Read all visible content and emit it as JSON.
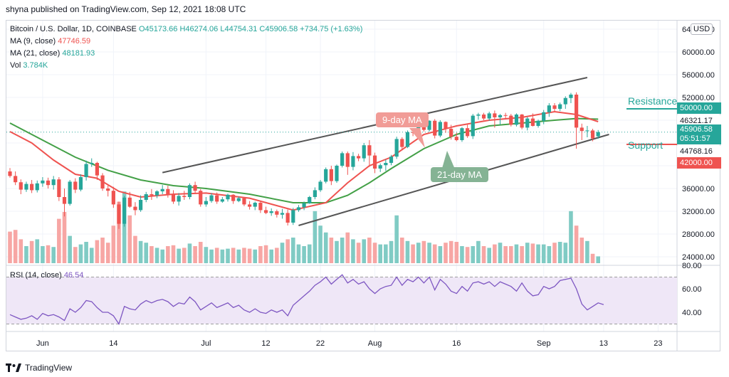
{
  "header": "shyna published on TradingView.com, Sep 12, 2021 18:08 UTC",
  "legend": {
    "symbol": "Bitcoin / U.S. Dollar, 1D, COINBASE",
    "open": "O45173.66",
    "high": "H46274.06",
    "low": "L44754.31",
    "close": "C45906.58",
    "change": "+734.75 (+1.63%)",
    "ma9_label": "MA (9, close)",
    "ma9_value": "47746.59",
    "ma21_label": "MA (21, close)",
    "ma21_value": "48181.93",
    "vol_label": "Vol",
    "vol_value": "3.784K"
  },
  "rsi_legend": {
    "label": "RSI (14, close)",
    "value": "46.54"
  },
  "currency_button": "USD",
  "price_tags": {
    "resistance": "50000.00",
    "ma": "46321.17",
    "last": "45906.58",
    "countdown": "05:51:57",
    "support": "44768.16",
    "support_line": "42000.00"
  },
  "annotations": {
    "nine_day": "9-day MA",
    "twenty_one_day": "21-day MA",
    "resistance": "Resistance",
    "support": "Support"
  },
  "footer": "TradingView",
  "colors": {
    "up": "#26a69a",
    "down": "#ef5350",
    "ma9": "#ef5350",
    "ma21": "#43a047",
    "vol_up": "#80cbc4",
    "vol_down": "#f7a6a4",
    "rsi": "#7e57c2",
    "rsi_band": "#efe7f7",
    "channel": "#555555"
  },
  "chart_data": {
    "type": "candlestick",
    "price_ticks": [
      24000,
      28000,
      32000,
      36000,
      40000,
      44000,
      48000,
      52000,
      56000,
      60000,
      64000
    ],
    "price_tick_labels": [
      "24000.00",
      "28000.00",
      "32000.00",
      "36000.00",
      "",
      "",
      "",
      "52000.00",
      "56000.00",
      "60000.00",
      "64000.00"
    ],
    "rsi_ticks": [
      40,
      60,
      80
    ],
    "rsi_tick_labels": [
      "40.00",
      "60.00",
      "80.00"
    ],
    "x_ticks": [
      {
        "label": "Jun",
        "day": 6
      },
      {
        "label": "14",
        "day": 19
      },
      {
        "label": "Jul",
        "day": 36
      },
      {
        "label": "12",
        "day": 47
      },
      {
        "label": "22",
        "day": 57
      },
      {
        "label": "Aug",
        "day": 67
      },
      {
        "label": "16",
        "day": 82
      },
      {
        "label": "Sep",
        "day": 98
      },
      {
        "label": "13",
        "day": 109
      },
      {
        "label": "23",
        "day": 119
      }
    ],
    "candles": [
      [
        39000,
        39600,
        37900,
        38200
      ],
      [
        38200,
        39000,
        36600,
        37100
      ],
      [
        37100,
        37600,
        35000,
        35800
      ],
      [
        35800,
        37200,
        35400,
        36800
      ],
      [
        36800,
        37500,
        35200,
        35700
      ],
      [
        35700,
        37400,
        35300,
        36900
      ],
      [
        36900,
        38000,
        36300,
        37400
      ],
      [
        37400,
        37900,
        36000,
        36600
      ],
      [
        36600,
        38200,
        35800,
        37600
      ],
      [
        37600,
        38000,
        33800,
        34500
      ],
      [
        34500,
        36000,
        31100,
        33300
      ],
      [
        33300,
        37500,
        33000,
        37200
      ],
      [
        37200,
        37800,
        35200,
        35800
      ],
      [
        35800,
        38500,
        35500,
        38000
      ],
      [
        38000,
        40900,
        37400,
        40300
      ],
      [
        40300,
        41300,
        39800,
        40500
      ],
      [
        40500,
        40700,
        37500,
        38300
      ],
      [
        38300,
        38700,
        35600,
        36000
      ],
      [
        36000,
        36500,
        34600,
        35600
      ],
      [
        35600,
        36300,
        32600,
        33200
      ],
      [
        33200,
        33700,
        28900,
        29800
      ],
      [
        29800,
        34700,
        29300,
        34400
      ],
      [
        34400,
        35400,
        32600,
        32800
      ],
      [
        32800,
        33600,
        31300,
        32200
      ],
      [
        32200,
        34800,
        31900,
        34000
      ],
      [
        34000,
        35400,
        33600,
        35000
      ],
      [
        35000,
        35900,
        34000,
        34800
      ],
      [
        34800,
        35700,
        34300,
        35500
      ],
      [
        35500,
        36600,
        35000,
        35900
      ],
      [
        35900,
        36500,
        34400,
        35000
      ],
      [
        35000,
        35700,
        33300,
        33700
      ],
      [
        33700,
        35200,
        33000,
        34700
      ],
      [
        34700,
        35600,
        34000,
        34500
      ],
      [
        34500,
        36900,
        34100,
        36600
      ],
      [
        36600,
        37200,
        35200,
        35600
      ],
      [
        35600,
        35900,
        32800,
        33200
      ],
      [
        33200,
        34500,
        32800,
        33800
      ],
      [
        33800,
        35200,
        33500,
        34800
      ],
      [
        34800,
        35300,
        33300,
        33700
      ],
      [
        33700,
        34500,
        33500,
        34100
      ],
      [
        34100,
        35100,
        33700,
        34900
      ],
      [
        34900,
        35000,
        33300,
        33800
      ],
      [
        33800,
        34600,
        33600,
        34300
      ],
      [
        34300,
        34400,
        32900,
        33200
      ],
      [
        33200,
        33800,
        32300,
        32800
      ],
      [
        32800,
        33700,
        32200,
        33500
      ],
      [
        33500,
        33700,
        31700,
        32200
      ],
      [
        32200,
        32800,
        31500,
        31700
      ],
      [
        31700,
        32500,
        31200,
        32000
      ],
      [
        32000,
        32300,
        30900,
        31400
      ],
      [
        31400,
        32400,
        30700,
        31700
      ],
      [
        31700,
        32300,
        29500,
        30000
      ],
      [
        30000,
        32600,
        29600,
        32200
      ],
      [
        32200,
        33100,
        31900,
        32700
      ],
      [
        32700,
        33700,
        32200,
        33400
      ],
      [
        33400,
        34700,
        33300,
        34500
      ],
      [
        34500,
        36200,
        34100,
        35700
      ],
      [
        35700,
        37500,
        35400,
        37200
      ],
      [
        37200,
        39700,
        36900,
        39400
      ],
      [
        39400,
        40000,
        36600,
        37300
      ],
      [
        37300,
        40200,
        37000,
        40000
      ],
      [
        40000,
        42500,
        39700,
        42200
      ],
      [
        42200,
        42500,
        38400,
        39800
      ],
      [
        39800,
        42400,
        39200,
        41700
      ],
      [
        41700,
        42100,
        40800,
        41300
      ],
      [
        41300,
        44000,
        40700,
        43600
      ],
      [
        43600,
        44500,
        39800,
        41800
      ],
      [
        41800,
        42300,
        38700,
        39500
      ],
      [
        39500,
        40400,
        38900,
        40100
      ],
      [
        40100,
        41100,
        39100,
        40500
      ],
      [
        40500,
        41900,
        40100,
        41600
      ],
      [
        41600,
        45100,
        41200,
        44700
      ],
      [
        44700,
        45000,
        42700,
        43300
      ],
      [
        43300,
        46200,
        43100,
        45900
      ],
      [
        45900,
        46500,
        45200,
        45800
      ],
      [
        45800,
        47400,
        45400,
        47100
      ],
      [
        47100,
        47900,
        46000,
        46300
      ],
      [
        46300,
        48000,
        46000,
        47900
      ],
      [
        47900,
        48200,
        44800,
        45300
      ],
      [
        45300,
        48000,
        45000,
        47700
      ],
      [
        47700,
        47800,
        45800,
        46500
      ],
      [
        46500,
        47200,
        44600,
        45100
      ],
      [
        45100,
        45800,
        44300,
        44500
      ],
      [
        44500,
        46800,
        44200,
        46600
      ],
      [
        46600,
        47200,
        44900,
        45200
      ],
      [
        45200,
        49100,
        44700,
        48800
      ],
      [
        48800,
        49300,
        48100,
        49000
      ],
      [
        49000,
        49300,
        48000,
        48300
      ],
      [
        48300,
        49500,
        47900,
        49200
      ],
      [
        49200,
        49700,
        46700,
        48500
      ],
      [
        48500,
        49100,
        47200,
        48900
      ],
      [
        48900,
        49300,
        48200,
        48800
      ],
      [
        48800,
        49100,
        46900,
        47200
      ],
      [
        47200,
        49200,
        46900,
        49000
      ],
      [
        49000,
        49100,
        46400,
        46700
      ],
      [
        46700,
        48600,
        46200,
        48300
      ],
      [
        48300,
        49200,
        46900,
        47000
      ],
      [
        47000,
        48100,
        46700,
        47900
      ],
      [
        47900,
        49800,
        47300,
        49400
      ],
      [
        49400,
        51000,
        48600,
        50600
      ],
      [
        50600,
        51000,
        49500,
        50000
      ],
      [
        50000,
        51100,
        49600,
        50800
      ],
      [
        50800,
        52200,
        50000,
        51900
      ],
      [
        51900,
        52800,
        51000,
        52500
      ],
      [
        52500,
        52900,
        43000,
        46700
      ],
      [
        46700,
        47400,
        44500,
        46100
      ],
      [
        46100,
        47000,
        45000,
        46200
      ],
      [
        46200,
        46500,
        44300,
        44800
      ],
      [
        45173.66,
        46274.06,
        44754.31,
        45906.58
      ]
    ],
    "volume": [
      1.85,
      1.95,
      1.4,
      1.0,
      1.3,
      1.4,
      1.0,
      1.05,
      0.95,
      2.6,
      3.0,
      1.6,
      0.95,
      1.1,
      1.25,
      0.9,
      1.35,
      1.5,
      1.2,
      2.2,
      3.6,
      4.2,
      2.8,
      1.6,
      1.3,
      1.2,
      1.0,
      0.9,
      0.8,
      1.0,
      1.05,
      0.85,
      0.9,
      1.15,
      1.0,
      1.25,
      0.95,
      0.8,
      0.9,
      0.8,
      0.85,
      0.9,
      0.8,
      0.9,
      0.85,
      0.8,
      1.0,
      1.05,
      0.8,
      0.9,
      1.2,
      1.4,
      1.5,
      1.1,
      1.0,
      1.1,
      3.05,
      2.2,
      1.8,
      1.5,
      1.3,
      1.5,
      1.8,
      1.4,
      1.2,
      1.4,
      1.5,
      1.2,
      1.1,
      1.1,
      1.3,
      2.8,
      1.5,
      1.3,
      1.1,
      1.2,
      1.3,
      1.2,
      1.1,
      1.0,
      1.2,
      1.3,
      1.25,
      1.0,
      0.95,
      1.0,
      1.3,
      1.0,
      0.9,
      1.1,
      1.2,
      1.0,
      1.0,
      1.1,
      1.0,
      1.2,
      1.15,
      1.1,
      1.1,
      1.0,
      1.2,
      1.25,
      1.2,
      3.05,
      2.2,
      1.5,
      1.3,
      0.55,
      0.4
    ],
    "rsi": [
      38,
      36,
      34,
      35,
      37,
      34,
      39,
      37,
      38,
      36,
      33,
      43,
      40,
      44,
      50,
      49,
      44,
      40,
      40,
      37,
      30,
      45,
      43,
      42,
      47,
      50,
      48,
      50,
      51,
      49,
      45,
      48,
      47,
      53,
      49,
      42,
      45,
      48,
      44,
      46,
      48,
      44,
      46,
      42,
      40,
      43,
      40,
      39,
      42,
      40,
      42,
      37,
      46,
      50,
      54,
      58,
      63,
      66,
      70,
      64,
      68,
      72,
      65,
      68,
      64,
      66,
      60,
      56,
      60,
      62,
      63,
      70,
      63,
      68,
      66,
      70,
      65,
      70,
      59,
      68,
      64,
      58,
      56,
      62,
      58,
      65,
      66,
      64,
      66,
      62,
      66,
      64,
      62,
      58,
      65,
      58,
      54,
      55,
      62,
      60,
      62,
      67,
      68,
      69,
      60,
      47,
      42,
      45,
      48,
      46.54
    ],
    "ma9_points": [
      [
        0,
        46000
      ],
      [
        4,
        44000
      ],
      [
        8,
        41000
      ],
      [
        12,
        38500
      ],
      [
        16,
        37800
      ],
      [
        20,
        35500
      ],
      [
        24,
        34500
      ],
      [
        30,
        35000
      ],
      [
        36,
        35200
      ],
      [
        44,
        34300
      ],
      [
        52,
        32200
      ],
      [
        58,
        33500
      ],
      [
        62,
        37000
      ],
      [
        66,
        40000
      ],
      [
        70,
        41500
      ],
      [
        76,
        45500
      ],
      [
        82,
        47000
      ],
      [
        88,
        48000
      ],
      [
        94,
        48500
      ],
      [
        100,
        49500
      ],
      [
        104,
        49000
      ],
      [
        108,
        47746.59
      ]
    ],
    "ma21_points": [
      [
        0,
        47500
      ],
      [
        6,
        44500
      ],
      [
        12,
        41500
      ],
      [
        18,
        39200
      ],
      [
        24,
        37500
      ],
      [
        30,
        36500
      ],
      [
        36,
        36000
      ],
      [
        44,
        35000
      ],
      [
        52,
        33500
      ],
      [
        58,
        33500
      ],
      [
        62,
        34800
      ],
      [
        66,
        37000
      ],
      [
        70,
        39500
      ],
      [
        76,
        43000
      ],
      [
        82,
        45500
      ],
      [
        88,
        47000
      ],
      [
        94,
        47500
      ],
      [
        100,
        48000
      ],
      [
        104,
        48300
      ],
      [
        108,
        48181.93
      ]
    ],
    "channel_upper": [
      [
        28,
        38800
      ],
      [
        106,
        55500
      ]
    ],
    "channel_lower": [
      [
        53,
        29500
      ],
      [
        110,
        45500
      ]
    ],
    "resistance_level": 50000,
    "support_level": 42000
  }
}
